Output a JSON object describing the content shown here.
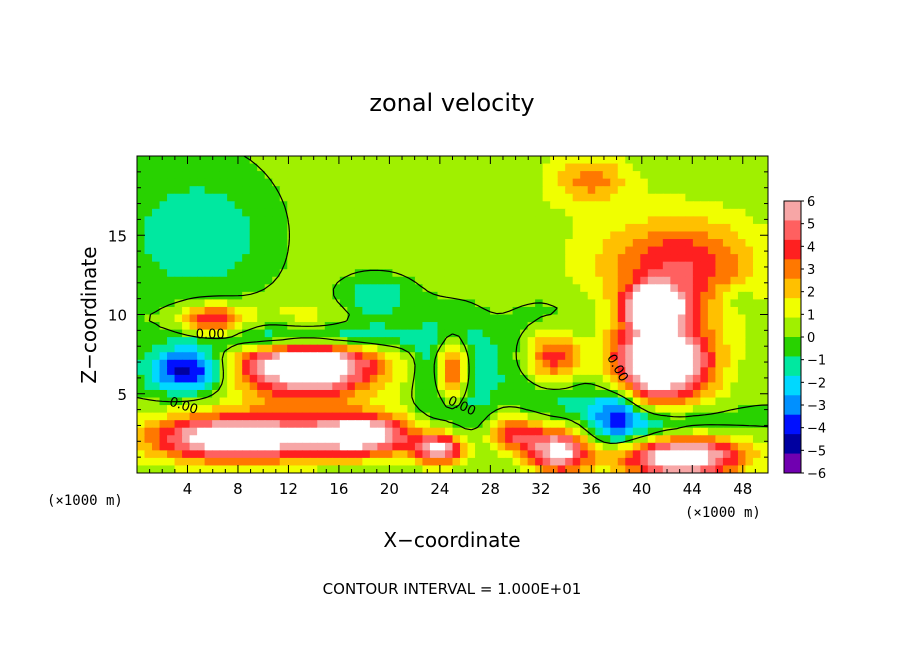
{
  "chart_data": {
    "type": "heatmap",
    "title": "zonal velocity",
    "xlabel": "X−coordinate",
    "ylabel": "Z−coordinate",
    "x_unit": "(×1000 m)",
    "y_unit": "(×1000 m)",
    "footer": "CONTOUR INTERVAL = 1.000E+01",
    "xlim": [
      0,
      50
    ],
    "ylim": [
      0,
      20
    ],
    "x_ticks": [
      4,
      8,
      12,
      16,
      20,
      24,
      28,
      32,
      36,
      40,
      44,
      48
    ],
    "x_tick_labels": [
      "4",
      "8",
      "12",
      "16",
      "20",
      "24",
      "28",
      "32",
      "36",
      "40",
      "44",
      "48"
    ],
    "y_ticks": [
      5,
      10,
      15
    ],
    "y_tick_labels": [
      "5",
      "10",
      "15"
    ],
    "colorbar": {
      "min": -6,
      "max": 6,
      "labels": [
        "6",
        "5",
        "4",
        "3",
        "2",
        "1",
        "0",
        "−1",
        "−2",
        "−3",
        "−4",
        "−5",
        "−6"
      ],
      "colors": [
        "#f7a6a6",
        "#ff6060",
        "#ff2020",
        "#ff7800",
        "#ffc000",
        "#f0ff00",
        "#a0f000",
        "#28d200",
        "#00e8a0",
        "#00d8ff",
        "#0090ff",
        "#0010ff",
        "#0000a0",
        "#7000b0"
      ]
    },
    "contour_labels": [
      "0.00",
      "0.00",
      "0.00",
      "0.00"
    ],
    "blobs": [
      {
        "x": 25,
        "y": 15,
        "rx": 30,
        "ry": 8,
        "v": 0.6
      },
      {
        "x": 5,
        "y": 15,
        "rx": 6,
        "ry": 4,
        "v": -2
      },
      {
        "x": 19,
        "y": 11,
        "rx": 3,
        "ry": 1.5,
        "v": -2.2
      },
      {
        "x": 36,
        "y": 18.5,
        "rx": 3,
        "ry": 1.5,
        "v": 2.5
      },
      {
        "x": 43,
        "y": 13,
        "rx": 6,
        "ry": 3,
        "v": 4
      },
      {
        "x": 6,
        "y": 9.6,
        "rx": 2.5,
        "ry": 1,
        "v": 4.5
      },
      {
        "x": 13.5,
        "y": 7,
        "rx": 5.5,
        "ry": 2.2,
        "v": 9
      },
      {
        "x": 13.5,
        "y": 8.5,
        "rx": 7,
        "ry": 1,
        "v": -6
      },
      {
        "x": 4,
        "y": 6.5,
        "rx": 3,
        "ry": 1.4,
        "v": -5
      },
      {
        "x": 25,
        "y": 6.5,
        "rx": 1.5,
        "ry": 2.3,
        "v": 9
      },
      {
        "x": 25,
        "y": 6.5,
        "rx": 2.3,
        "ry": 3,
        "v": -6
      },
      {
        "x": 33,
        "y": 7.2,
        "rx": 2.6,
        "ry": 2,
        "v": 9
      },
      {
        "x": 33,
        "y": 7,
        "rx": 3.5,
        "ry": 2.8,
        "v": -5.5
      },
      {
        "x": 41.5,
        "y": 7,
        "rx": 4,
        "ry": 2.6,
        "v": 9
      },
      {
        "x": 41,
        "y": 10.5,
        "rx": 2,
        "ry": 1.2,
        "v": 9
      },
      {
        "x": 8,
        "y": 2.2,
        "rx": 7,
        "ry": 1.5,
        "v": 8
      },
      {
        "x": 18,
        "y": 2.4,
        "rx": 4,
        "ry": 1.3,
        "v": 7
      },
      {
        "x": 24,
        "y": 1.5,
        "rx": 2,
        "ry": 1,
        "v": 6
      },
      {
        "x": 30,
        "y": 2.5,
        "rx": 2,
        "ry": 1.2,
        "v": 4
      },
      {
        "x": 33.5,
        "y": 1.5,
        "rx": 2.5,
        "ry": 1.5,
        "v": 7
      },
      {
        "x": 43,
        "y": 1.2,
        "rx": 5,
        "ry": 1.5,
        "v": 9
      },
      {
        "x": 41,
        "y": 2.5,
        "rx": 6,
        "ry": 1.5,
        "v": -4
      },
      {
        "x": 38,
        "y": 4,
        "rx": 2,
        "ry": 1.5,
        "v": -3
      },
      {
        "x": 47.5,
        "y": 11,
        "rx": 1.7,
        "ry": 1,
        "v": -1
      }
    ]
  }
}
